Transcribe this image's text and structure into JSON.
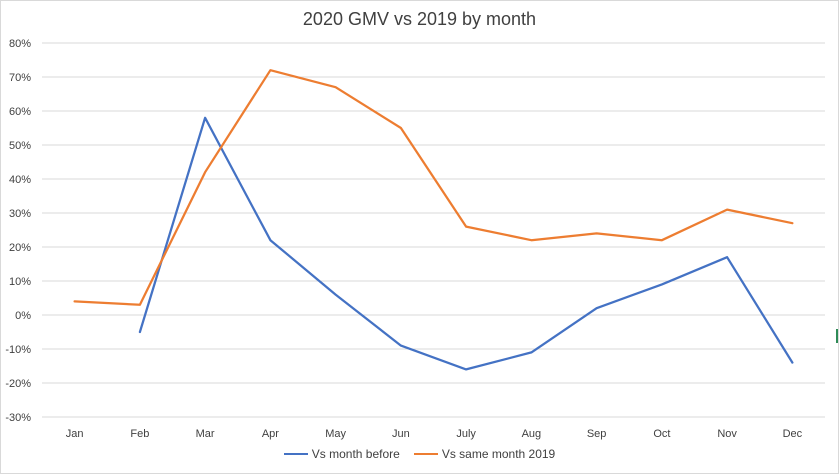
{
  "chart_data": {
    "type": "line",
    "title": "2020 GMV vs 2019 by month",
    "categories": [
      "Jan",
      "Feb",
      "Mar",
      "Apr",
      "May",
      "Jun",
      "July",
      "Aug",
      "Sep",
      "Oct",
      "Nov",
      "Dec"
    ],
    "y_ticks": [
      "-30%",
      "-20%",
      "-10%",
      "0%",
      "10%",
      "20%",
      "30%",
      "40%",
      "50%",
      "60%",
      "70%",
      "80%"
    ],
    "ylim": [
      -30,
      80
    ],
    "y_unit": "%",
    "grid": true,
    "legend_position": "bottom",
    "series": [
      {
        "name": "Vs month before",
        "color": "#4472c4",
        "values": [
          null,
          -5,
          58,
          22,
          6,
          -9,
          -16,
          -11,
          2,
          9,
          17,
          -14
        ]
      },
      {
        "name": "Vs same month 2019",
        "color": "#ed7d31",
        "values": [
          4,
          3,
          42,
          72,
          67,
          55,
          26,
          22,
          24,
          22,
          31,
          27
        ]
      }
    ]
  }
}
